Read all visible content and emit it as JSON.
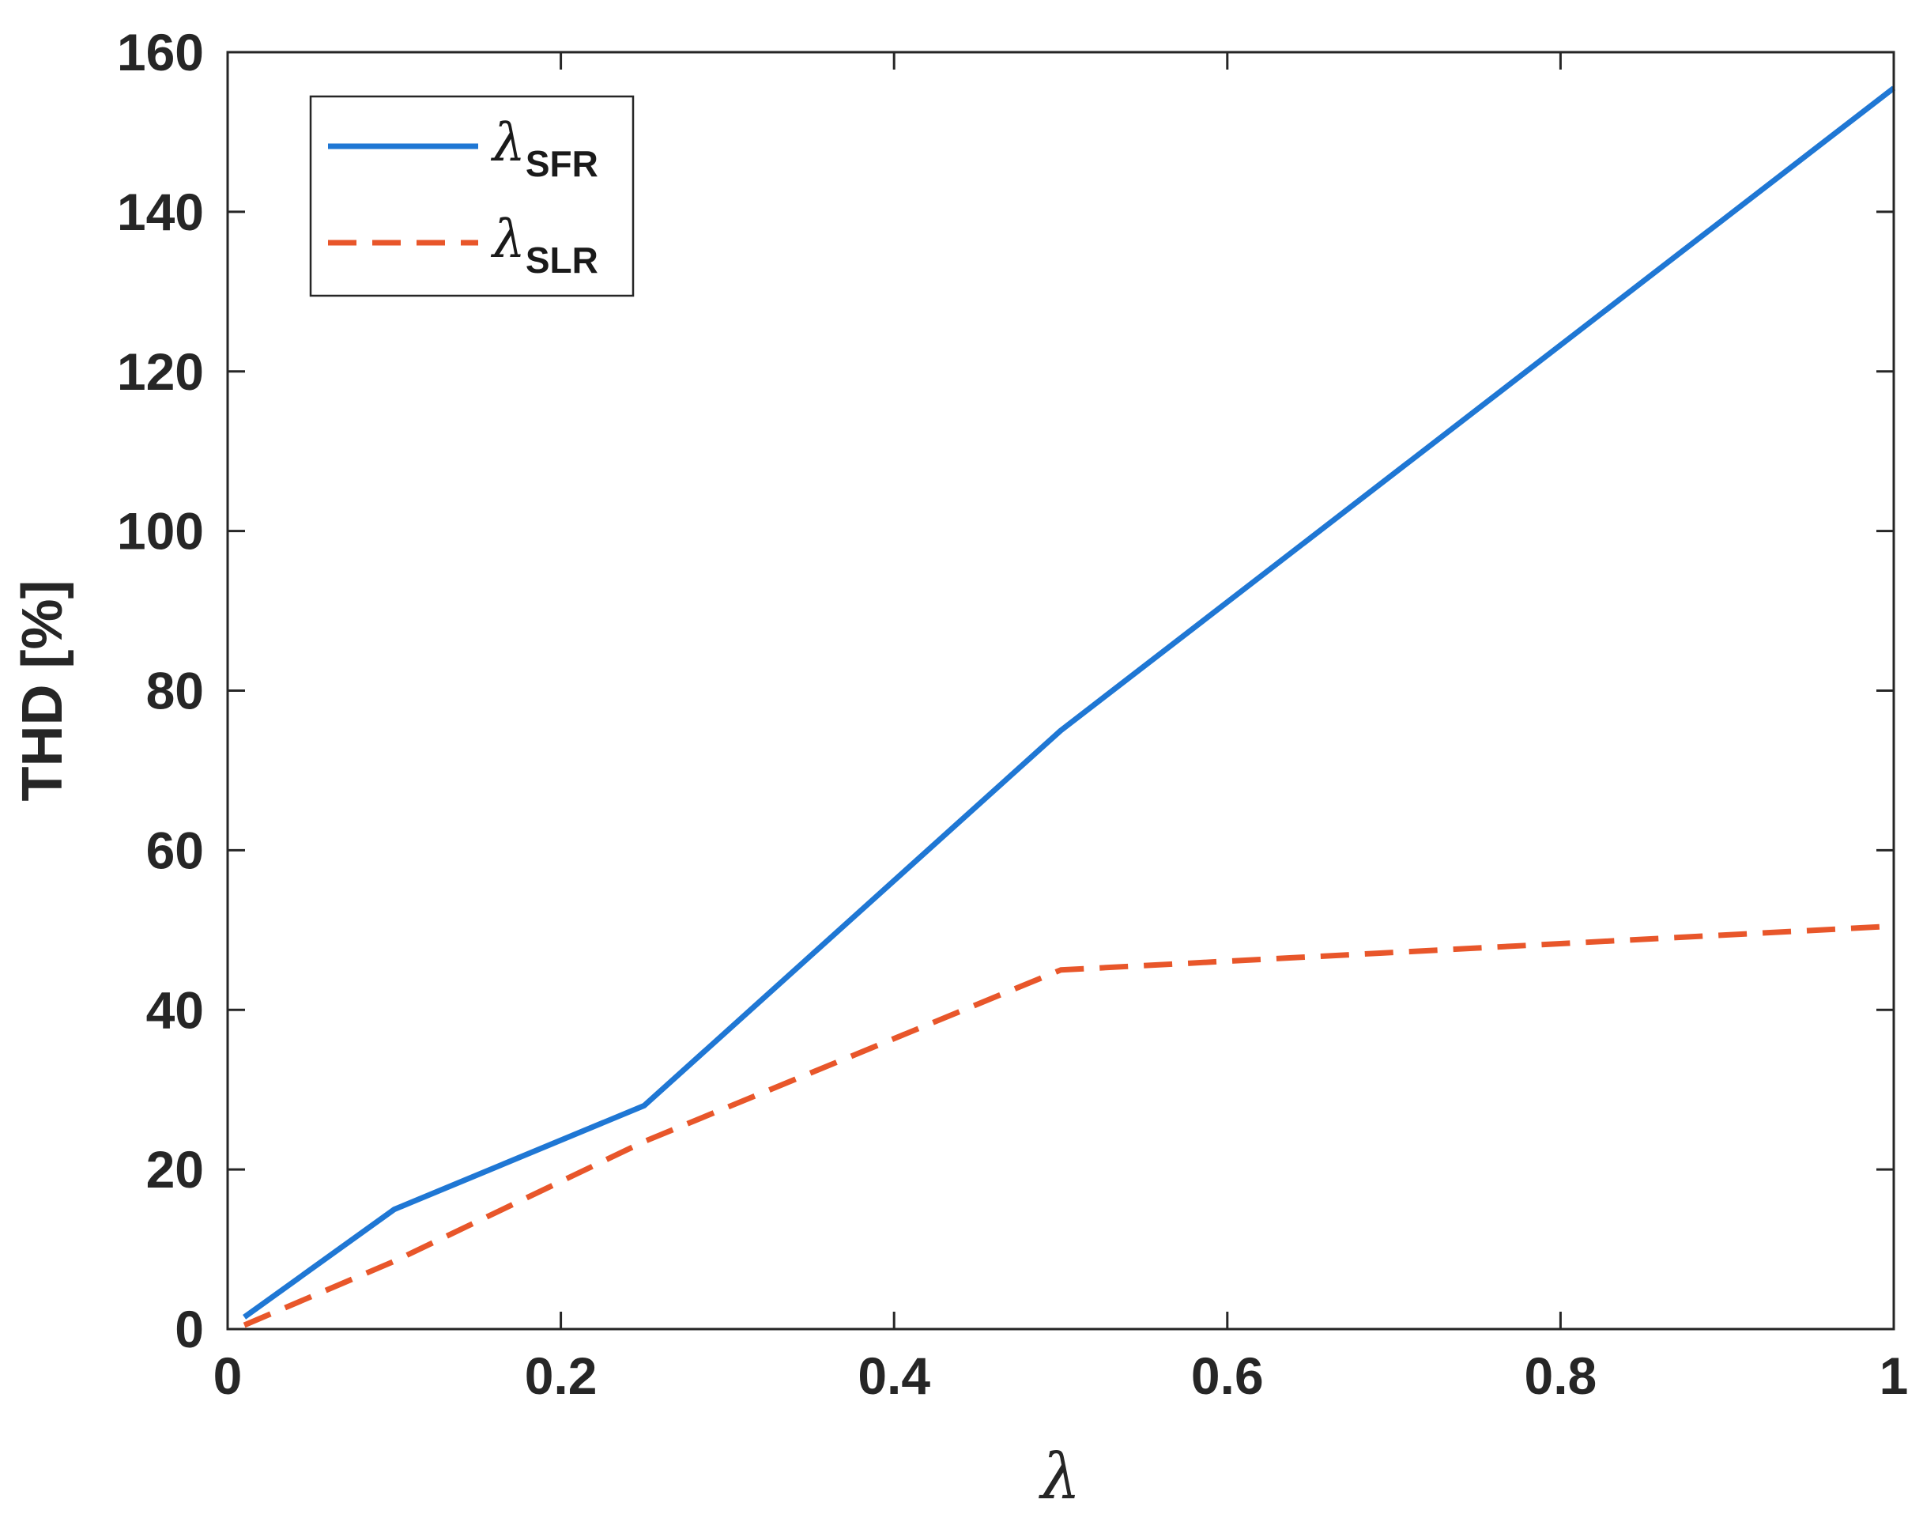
{
  "chart_data": {
    "type": "line",
    "xlabel": "λ",
    "ylabel": "THD [%]",
    "xlim": [
      0,
      1
    ],
    "ylim": [
      0,
      160
    ],
    "xticks": [
      0,
      0.2,
      0.4,
      0.6,
      0.8,
      1
    ],
    "xtick_labels": [
      "0",
      "0.2",
      "0.4",
      "0.6",
      "0.8",
      "1"
    ],
    "yticks": [
      0,
      20,
      40,
      60,
      80,
      100,
      120,
      140,
      160
    ],
    "ytick_labels": [
      "0",
      "20",
      "40",
      "60",
      "80",
      "100",
      "120",
      "140",
      "160"
    ],
    "grid": false,
    "legend_position": "top-left",
    "series": [
      {
        "name": "λSFR",
        "legend_symbol": "λ",
        "legend_subscript": "SFR",
        "color": "#1f77d4",
        "style": "solid",
        "x": [
          0.01,
          0.1,
          0.25,
          0.5,
          1.0
        ],
        "y": [
          1.5,
          15,
          28,
          75,
          155.5
        ]
      },
      {
        "name": "λSLR",
        "legend_symbol": "λ",
        "legend_subscript": "SLR",
        "color": "#e8562a",
        "style": "dashed",
        "x": [
          0.01,
          0.1,
          0.25,
          0.5,
          1.0
        ],
        "y": [
          0.5,
          8.5,
          23.5,
          45,
          50.5
        ]
      }
    ]
  }
}
